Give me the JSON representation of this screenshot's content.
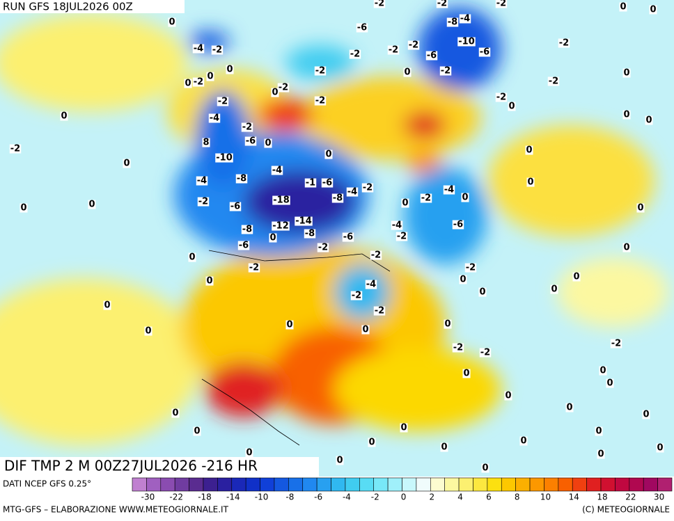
{
  "header": {
    "run": "RUN GFS 18JUL2026 00Z"
  },
  "map": {
    "contour_labels": [
      -2,
      -2,
      -2,
      0,
      0,
      0,
      -6,
      -8,
      -4,
      -4,
      -2,
      -10,
      -2,
      -6,
      -2,
      -2,
      -2,
      -6,
      0,
      0,
      0,
      -2,
      -2,
      0,
      -2,
      0,
      -2,
      -2,
      0,
      -2,
      -2,
      -2,
      0,
      0,
      -4,
      -2,
      0,
      0,
      -2,
      8,
      -6,
      0,
      0,
      0,
      0,
      -10,
      -4,
      -4,
      -8,
      -1,
      -6,
      -2,
      -4,
      -4,
      0,
      0,
      -2,
      -18,
      -8,
      0,
      0,
      -2,
      -6,
      0,
      0,
      -8,
      -12,
      -14,
      -8,
      -4,
      -6,
      -6,
      -2,
      0,
      -6,
      -2,
      0,
      -2,
      0,
      -2,
      -2,
      0,
      0,
      0,
      -4,
      -2,
      0,
      0,
      0,
      -2,
      0,
      0,
      0,
      0,
      -2,
      -2,
      -2,
      0,
      0,
      0,
      0,
      0,
      0,
      0,
      0,
      0,
      0,
      0,
      0,
      0,
      0,
      0,
      0,
      0,
      0
    ]
  },
  "footer": {
    "title": "DIF TMP 2 M 00Z27JUL2026 -216 HR",
    "source": "DATI NCEP GFS 0.25°",
    "credit": "MTG-GFS – ELABORAZIONE WWW.METEOGIORNALE.IT",
    "copyright": "(C) METEOGIORNALE"
  },
  "legend": {
    "colors": [
      "#c080d0",
      "#a060c0",
      "#8a4cb0",
      "#703ca0",
      "#5a2c90",
      "#3c2090",
      "#2a20a0",
      "#1a28b8",
      "#1030c8",
      "#1040d8",
      "#1458e0",
      "#1870e8",
      "#2088f0",
      "#28a0f0",
      "#30b8f0",
      "#40ccf0",
      "#58dcf4",
      "#78e8f8",
      "#a0f0fa",
      "#c8f8fc",
      "#f0fcfc",
      "#fcfcd0",
      "#fcf8a0",
      "#fcf070",
      "#fce840",
      "#fce010",
      "#fcc800",
      "#fcb000",
      "#fc9800",
      "#fc8000",
      "#f86000",
      "#f04010",
      "#e02020",
      "#d01030",
      "#c00840",
      "#b00850",
      "#a00860",
      "#b02070"
    ],
    "ticks": [
      -30,
      -22,
      -18,
      -14,
      -10,
      -8,
      -6,
      -4,
      -2,
      0,
      2,
      4,
      6,
      8,
      10,
      14,
      18,
      22,
      30
    ]
  }
}
